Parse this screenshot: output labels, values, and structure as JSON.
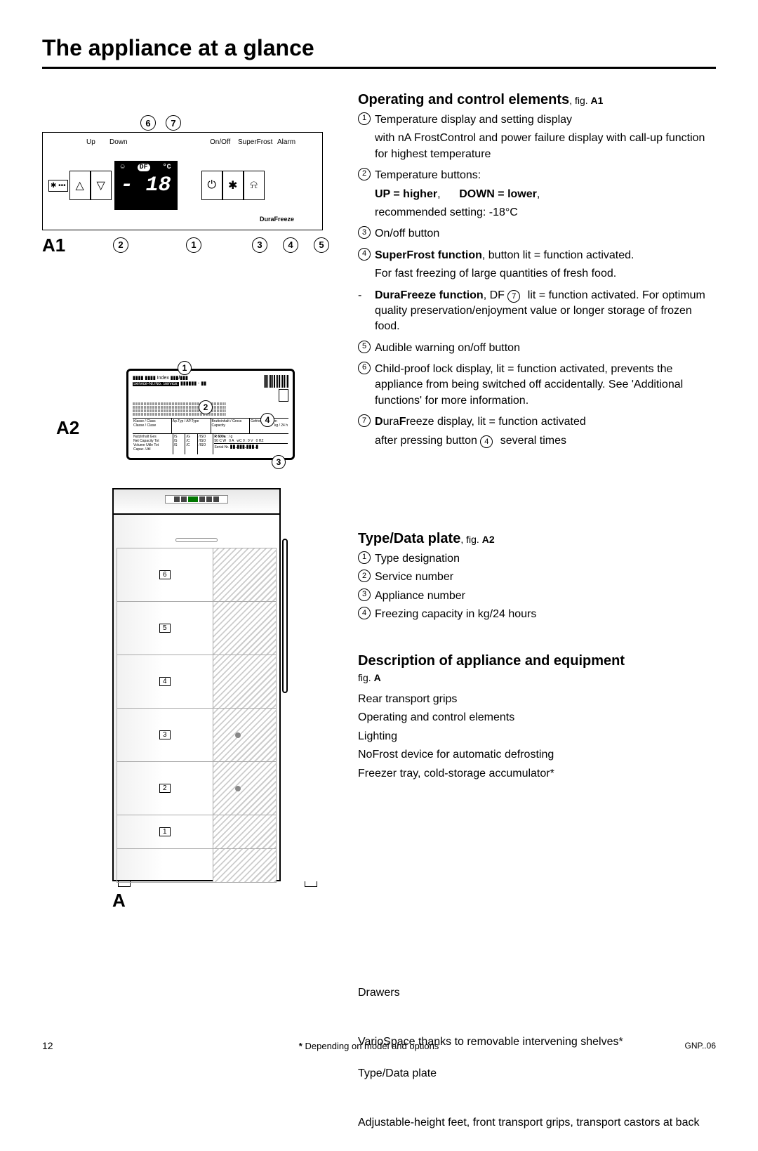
{
  "page_title": "The appliance at a glance",
  "section1": {
    "heading": "Operating and control elements",
    "fig_ref": ", fig. A1",
    "items": [
      {
        "n": "1",
        "lines": [
          "Temperature display and setting display",
          "with nA FrostControl and power failure display with call-up function for highest temperature"
        ]
      },
      {
        "n": "2",
        "lines": [
          "Temperature buttons:",
          "<b>UP = higher</b>,&nbsp;&nbsp;&nbsp;&nbsp;&nbsp;&nbsp;<b>DOWN = lower</b>,",
          "recommended setting: -18°C"
        ]
      },
      {
        "n": "3",
        "lines": [
          "On/off button"
        ]
      },
      {
        "n": "4",
        "lines": [
          "<b>SuperFrost function</b>, button lit = function activated.",
          "For fast freezing of large quantities of fresh food."
        ]
      },
      {
        "n": "-",
        "lines": [
          "<b>DuraFreeze function</b>, DF <span class='circled'>7</span> lit = function activated. For optimum quality preservation/enjoyment value or longer storage of frozen food."
        ]
      },
      {
        "n": "5",
        "lines": [
          "Audible warning on/off button"
        ]
      },
      {
        "n": "6",
        "lines": [
          "Child-proof lock display, lit = function activated, prevents the appliance from being switched off accidentally.  See 'Additional functions' for more information."
        ]
      },
      {
        "n": "7",
        "lines": [
          "<b>D</b>ura<b>F</b>reeze display, lit = function activated",
          "after pressing button <span class='circled'>4</span> several times"
        ]
      }
    ]
  },
  "section2": {
    "heading": "Type/Data plate",
    "fig_ref": ", fig. A2",
    "items": [
      {
        "n": "1",
        "text": "Type designation"
      },
      {
        "n": "2",
        "text": "Service number"
      },
      {
        "n": "3",
        "text": "Appliance number"
      },
      {
        "n": "4",
        "text": "Freezing capacity in kg/24 hours"
      }
    ]
  },
  "section3": {
    "heading": "Description of appliance and equipment",
    "fig_ref": "fig. A",
    "group1": [
      "Rear transport grips",
      "Operating and control elements",
      "Lighting",
      "NoFrost device for automatic defrosting",
      "Freezer tray, cold-storage accumulator*"
    ],
    "group2": "Drawers",
    "group3": "VarioSpace thanks to removable intervening shelves*",
    "group4": "Type/Data plate",
    "group5": "Adjustable-height feet, front transport grips, transport castors at back"
  },
  "fig_a1": {
    "label": "A1",
    "labels": {
      "up": "Up",
      "down": "Down",
      "onoff": "On/Off",
      "super": "SuperFrost",
      "alarm": "Alarm",
      "durafreeze": "DuraFreeze"
    },
    "display_value": "- 18",
    "display_df": "DF",
    "display_c": "°C",
    "top_callouts": [
      "6",
      "7"
    ],
    "bottom_callouts": [
      "2",
      "1",
      "3",
      "4",
      "5"
    ]
  },
  "fig_a2": {
    "label": "A2",
    "index_text": "Index",
    "service_text": "Service-Nr./No. Service:",
    "kg_text": "kg / 24 h",
    "callouts": [
      "1",
      "2",
      "3",
      "4"
    ]
  },
  "fig_a": {
    "label": "A",
    "drawer_nums": [
      "6",
      "5",
      "4",
      "3",
      "2",
      "1"
    ]
  },
  "footer": {
    "page": "12",
    "center": "* Depending on model and options",
    "right": "GNP..06"
  }
}
